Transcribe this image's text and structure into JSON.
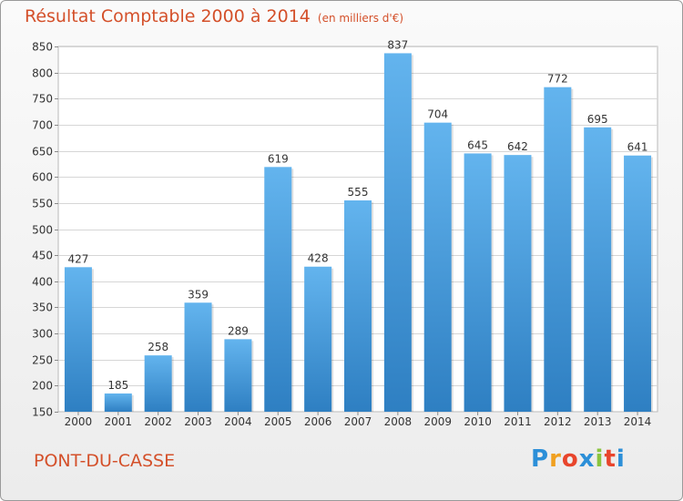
{
  "header": {
    "title": "Résultat Comptable 2000 à 2014",
    "subtitle": "(en milliers d'€)"
  },
  "footer": {
    "place": "PONT-DU-CASSE",
    "logo": {
      "letters": [
        "P",
        "r",
        "o",
        "x",
        "i",
        "t",
        "i"
      ],
      "colors": [
        "#2c8fd8",
        "#f0a020",
        "#e8452c",
        "#2c8fd8",
        "#8ac43f",
        "#e8452c",
        "#2c8fd8"
      ]
    }
  },
  "colors": {
    "bar_top": "#63b4ee",
    "bar_bottom": "#2e7fc2",
    "title": "#d4502a",
    "grid": "#d6d6d6"
  },
  "chart_data": {
    "type": "bar",
    "title": "Résultat Comptable 2000 à 2014",
    "categories": [
      "2000",
      "2001",
      "2002",
      "2003",
      "2004",
      "2005",
      "2006",
      "2007",
      "2008",
      "2009",
      "2010",
      "2011",
      "2012",
      "2013",
      "2014"
    ],
    "values": [
      427,
      185,
      258,
      359,
      289,
      619,
      428,
      555,
      837,
      704,
      645,
      642,
      772,
      695,
      641
    ],
    "ylim": [
      150,
      850
    ],
    "yticks": [
      150,
      200,
      250,
      300,
      350,
      400,
      450,
      500,
      550,
      600,
      650,
      700,
      750,
      800,
      850
    ],
    "xlabel": "",
    "ylabel": ""
  }
}
